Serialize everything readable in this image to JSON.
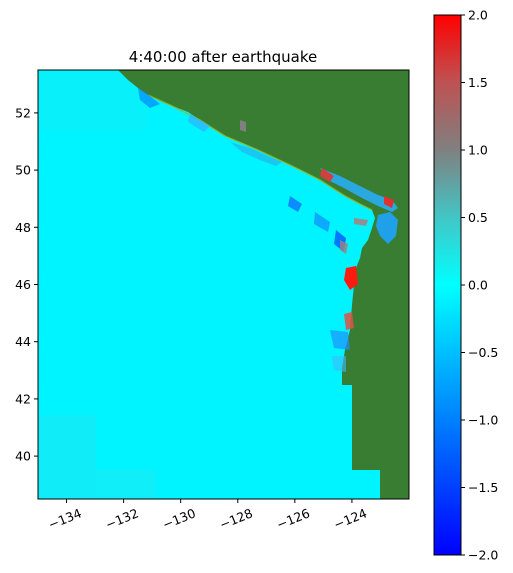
{
  "title": "4:40:00 after earthquake",
  "map": {
    "x_ticks": [
      "−134",
      "−132",
      "−130",
      "−128",
      "−126",
      "−124"
    ],
    "x_tick_values": [
      -134,
      -132,
      -130,
      -128,
      -126,
      -124
    ],
    "y_ticks": [
      "40",
      "42",
      "44",
      "46",
      "48",
      "50",
      "52"
    ],
    "y_tick_values": [
      40,
      42,
      44,
      46,
      48,
      50,
      52
    ],
    "xlim": [
      -135,
      -122
    ],
    "ylim": [
      38.5,
      53.5
    ]
  },
  "colorbar": {
    "ticks": [
      "2.0",
      "1.5",
      "1.0",
      "0.5",
      "0.0",
      "−0.5",
      "−1.0",
      "−1.5",
      "−2.0"
    ],
    "tick_values": [
      2.0,
      1.5,
      1.0,
      0.5,
      0.0,
      -0.5,
      -1.0,
      -1.5,
      -2.0
    ],
    "range": [
      -2.0,
      2.0
    ],
    "colors": [
      "#0000ff",
      "#00ffff",
      "#808080",
      "#ff0000"
    ]
  },
  "colors": {
    "land": "#387d32",
    "ocean": "#00f4ff",
    "ocean_light": "#1de8f4"
  }
}
